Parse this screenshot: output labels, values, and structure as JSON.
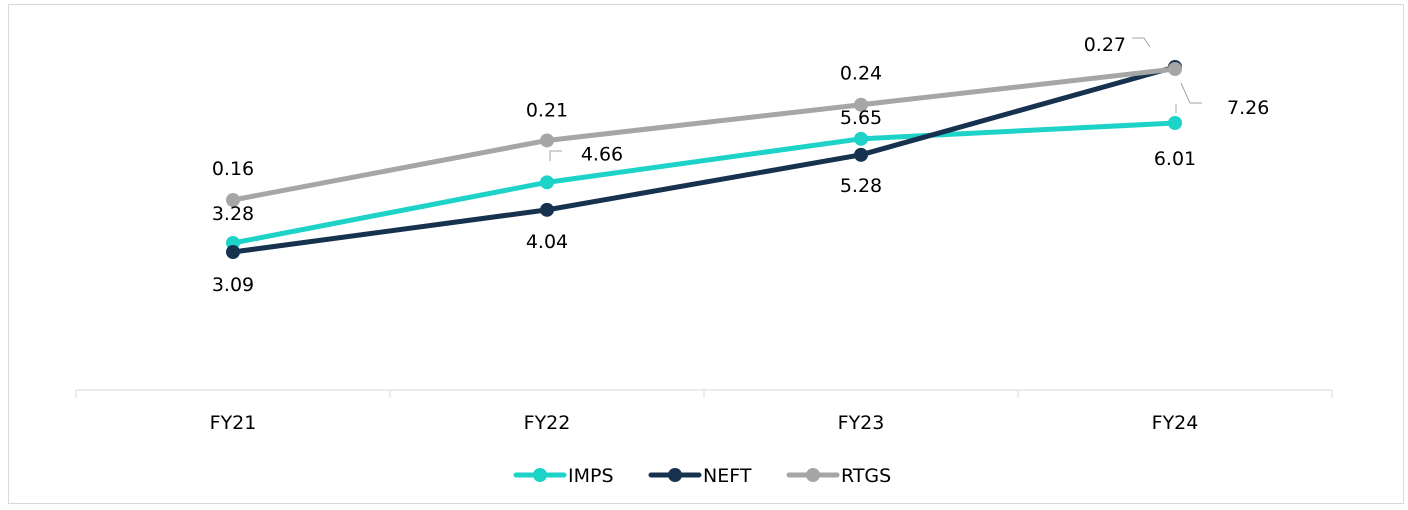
{
  "chart_data": {
    "type": "line",
    "categories": [
      "FY21",
      "FY22",
      "FY23",
      "FY24"
    ],
    "series": [
      {
        "name": "IMPS",
        "color": "#1dd3c8",
        "values": [
          3.28,
          4.66,
          5.65,
          6.01
        ]
      },
      {
        "name": "NEFT",
        "color": "#17324f",
        "values": [
          3.09,
          4.04,
          5.28,
          7.26
        ]
      },
      {
        "name": "RTGS",
        "color": "#a6a6a6",
        "values": [
          0.16,
          0.21,
          0.24,
          0.27
        ]
      }
    ],
    "legend_position": "bottom",
    "grid": false
  }
}
